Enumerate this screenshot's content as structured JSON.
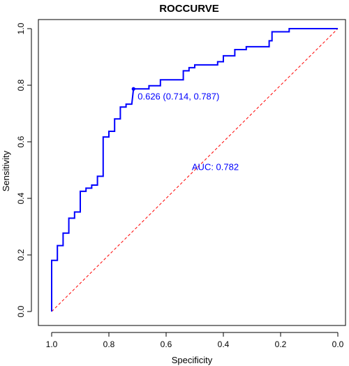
{
  "chart_data": {
    "type": "line",
    "title": "ROCCURVE",
    "xlabel": "Specificity",
    "ylabel": "Sensitivity",
    "xlim": [
      1.0,
      0.0
    ],
    "ylim": [
      0.0,
      1.0
    ],
    "x_reversed": true,
    "x_ticks": [
      "1.0",
      "0.8",
      "0.6",
      "0.4",
      "0.2",
      "0.0"
    ],
    "y_ticks": [
      "0.0",
      "0.2",
      "0.4",
      "0.6",
      "0.8",
      "1.0"
    ],
    "grid": false,
    "series": [
      {
        "curve_color": "#0000ff",
        "specificity": [
          1.0,
          1.0,
          0.98,
          0.98,
          0.96,
          0.96,
          0.94,
          0.94,
          0.92,
          0.92,
          0.9,
          0.9,
          0.88,
          0.88,
          0.86,
          0.86,
          0.84,
          0.84,
          0.82,
          0.82,
          0.8,
          0.8,
          0.78,
          0.78,
          0.76,
          0.76,
          0.74,
          0.74,
          0.72,
          0.714,
          0.66,
          0.66,
          0.62,
          0.62,
          0.54,
          0.54,
          0.52,
          0.52,
          0.5,
          0.5,
          0.42,
          0.42,
          0.4,
          0.4,
          0.36,
          0.36,
          0.32,
          0.32,
          0.24,
          0.24,
          0.23,
          0.23,
          0.17,
          0.17,
          0.0
        ],
        "sensitivity": [
          0.0,
          0.181,
          0.181,
          0.233,
          0.233,
          0.277,
          0.277,
          0.33,
          0.33,
          0.352,
          0.352,
          0.425,
          0.425,
          0.436,
          0.436,
          0.447,
          0.447,
          0.478,
          0.478,
          0.617,
          0.617,
          0.637,
          0.637,
          0.681,
          0.681,
          0.723,
          0.723,
          0.733,
          0.733,
          0.787,
          0.787,
          0.798,
          0.798,
          0.819,
          0.819,
          0.851,
          0.851,
          0.862,
          0.862,
          0.872,
          0.872,
          0.883,
          0.883,
          0.904,
          0.904,
          0.926,
          0.926,
          0.936,
          0.936,
          0.957,
          0.957,
          0.989,
          0.989,
          1.0,
          1.0
        ]
      }
    ],
    "reference_line": {
      "from": [
        1.0,
        0.0
      ],
      "to": [
        0.0,
        1.0
      ],
      "style": "dashed",
      "color": "#ff0000"
    },
    "best_point": {
      "specificity": 0.714,
      "sensitivity": 0.787,
      "label": "0.626 (0.714, 0.787)",
      "color": "#0000ff"
    },
    "auc_label": {
      "text": "AUC: 0.782",
      "color": "#0000ff",
      "at": [
        0.51,
        0.5
      ]
    }
  }
}
